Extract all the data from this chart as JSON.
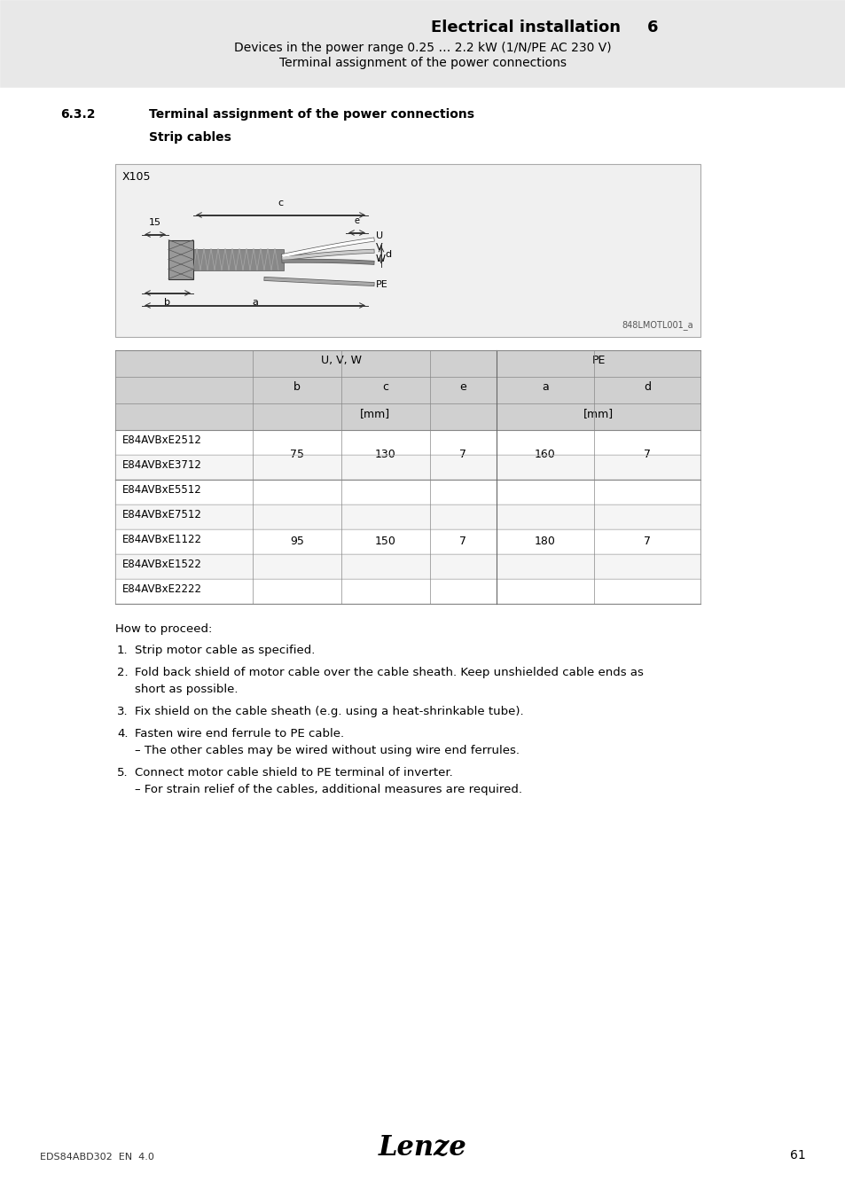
{
  "page_header_title": "Electrical installation",
  "page_header_chapter": "6",
  "page_header_sub1": "Devices in the power range 0.25 … 2.2 kW (1/N/PE AC 230 V)",
  "page_header_sub2": "Terminal assignment of the power connections",
  "section_number": "6.3.2",
  "section_title": "Terminal assignment of the power connections",
  "subsection_title": "Strip cables",
  "diagram_label": "X105",
  "diagram_ref": "848LMOTL001_a",
  "table_header_col1": "",
  "table_uvw": "U, V, W",
  "table_pe": "PE",
  "table_cols": [
    "b",
    "c",
    "e",
    "a",
    "d"
  ],
  "table_unit_uvw": "[mm]",
  "table_unit_pe": "[mm]",
  "table_rows": [
    {
      "model": "E84AVBxE2512",
      "b": "75",
      "c": "130",
      "e": "7",
      "a": "160",
      "d": "7",
      "group": 1
    },
    {
      "model": "E84AVBxE3712",
      "b": "",
      "c": "",
      "e": "",
      "a": "",
      "d": "",
      "group": 1
    },
    {
      "model": "E84AVBxE5512",
      "b": "95",
      "c": "150",
      "e": "7",
      "a": "180",
      "d": "7",
      "group": 2
    },
    {
      "model": "E84AVBxE7512",
      "b": "",
      "c": "",
      "e": "",
      "a": "",
      "d": "",
      "group": 2
    },
    {
      "model": "E84AVBxE1122",
      "b": "",
      "c": "",
      "e": "",
      "a": "",
      "d": "",
      "group": 2
    },
    {
      "model": "E84AVBxE1522",
      "b": "",
      "c": "",
      "e": "",
      "a": "",
      "d": "",
      "group": 2
    },
    {
      "model": "E84AVBxE2222",
      "b": "",
      "c": "",
      "e": "",
      "a": "",
      "d": "",
      "group": 2
    }
  ],
  "how_to_proceed": "How to proceed:",
  "steps": [
    {
      "num": "1.",
      "text": "Strip motor cable as specified."
    },
    {
      "num": "2.",
      "text": "Fold back shield of motor cable over the cable sheath. Keep unshielded cable ends as\nshort as possible."
    },
    {
      "num": "3.",
      "text": "Fix shield on the cable sheath (e.g. using a heat-shrinkable tube)."
    },
    {
      "num": "4.",
      "text": "Fasten wire end ferrule to PE cable.\n– The other cables may be wired without using wire end ferrules."
    },
    {
      "num": "5.",
      "text": "Connect motor cable shield to PE terminal of inverter.\n– For strain relief of the cables, additional measures are required."
    }
  ],
  "footer_left": "EDS84ABD302  EN  4.0",
  "footer_page": "61",
  "bg_header": "#e8e8e8",
  "bg_table_header": "#d0d0d0",
  "bg_table_subheader": "#e0e0e0",
  "bg_diagram": "#f0f0f0",
  "bg_white": "#ffffff",
  "text_color": "#000000",
  "line_color": "#aaaaaa",
  "table_line_color": "#bbbbbb"
}
